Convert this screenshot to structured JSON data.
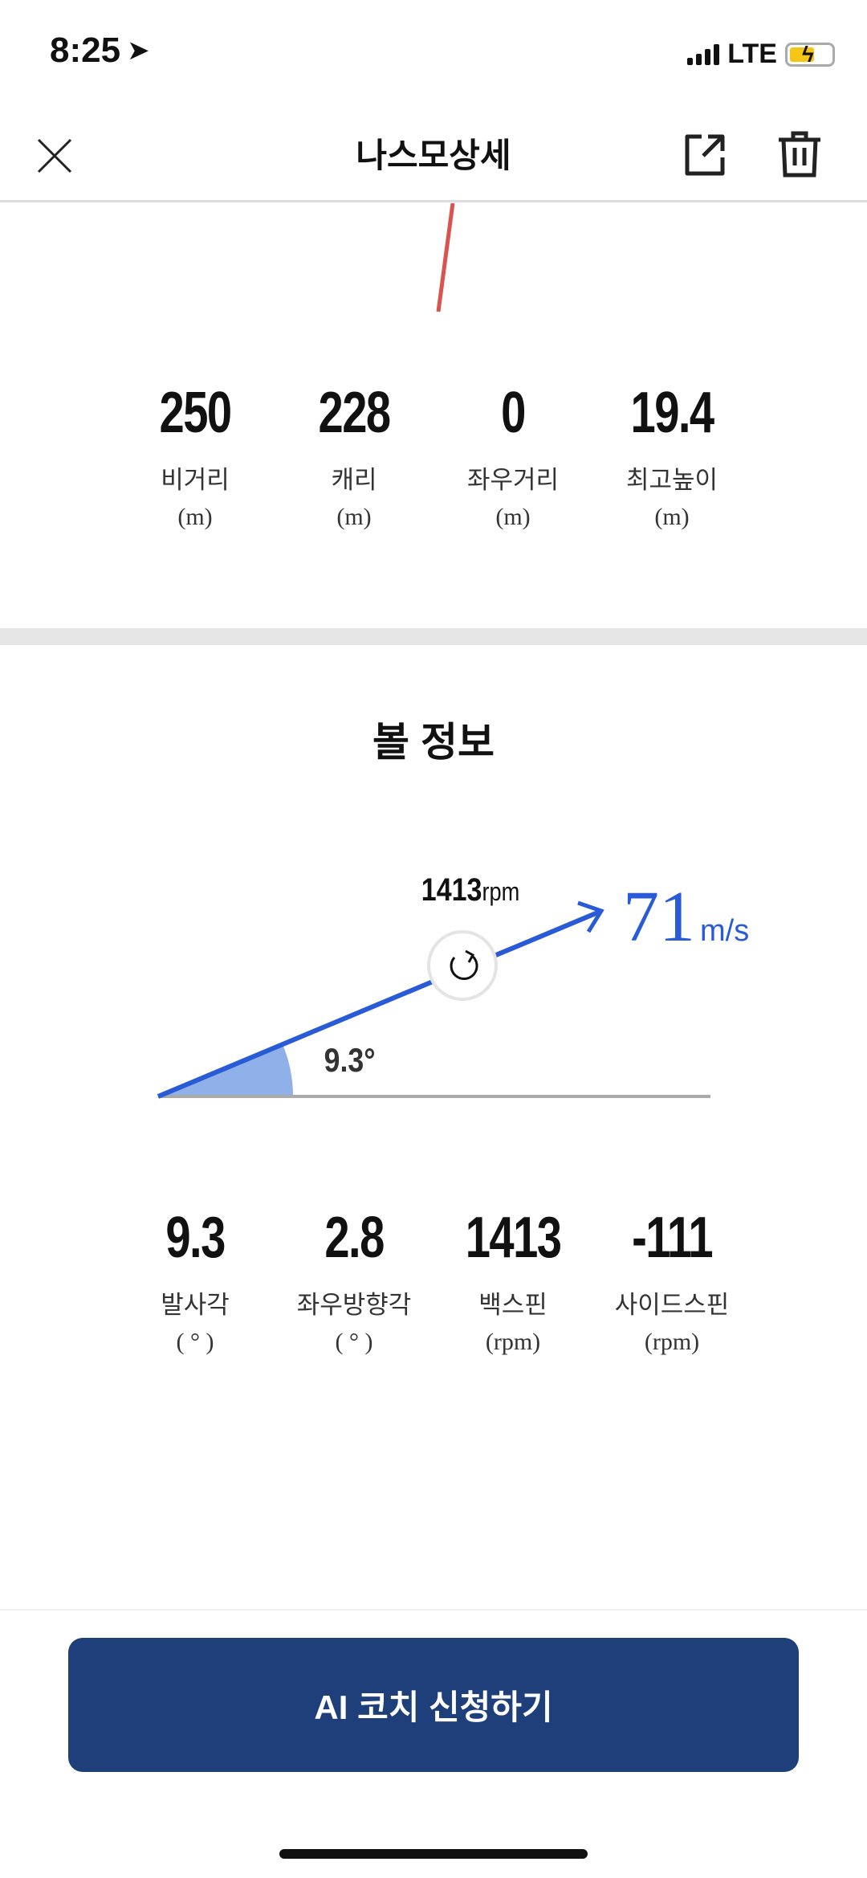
{
  "status_bar": {
    "time": "8:25",
    "network": "LTE"
  },
  "header": {
    "title": "나스모상세"
  },
  "shot_stats": [
    {
      "value": "250",
      "label": "비거리",
      "unit": "(m)"
    },
    {
      "value": "228",
      "label": "캐리",
      "unit": "(m)"
    },
    {
      "value": "0",
      "label": "좌우거리",
      "unit": "(m)"
    },
    {
      "value": "19.4",
      "label": "최고높이",
      "unit": "(m)"
    }
  ],
  "ball_info": {
    "title": "볼 정보",
    "diagram": {
      "spin_value": "1413",
      "spin_unit": "rpm",
      "speed_value": "71",
      "speed_unit": "m/s",
      "angle_label": "9.3°"
    },
    "stats": [
      {
        "value": "9.3",
        "label": "발사각",
        "unit": "( ° )"
      },
      {
        "value": "2.8",
        "label": "좌우방향각",
        "unit": "( ° )"
      },
      {
        "value": "1413",
        "label": "백스핀",
        "unit": "(rpm)"
      },
      {
        "value": "-111",
        "label": "사이드스핀",
        "unit": "(rpm)"
      }
    ]
  },
  "cta": {
    "label": "AI 코치 신청하기"
  },
  "colors": {
    "accent": "#2a5bd7",
    "button": "#1e3f7a",
    "trajectory": "#d9534f",
    "angle_fill": "#8fb0e8"
  }
}
